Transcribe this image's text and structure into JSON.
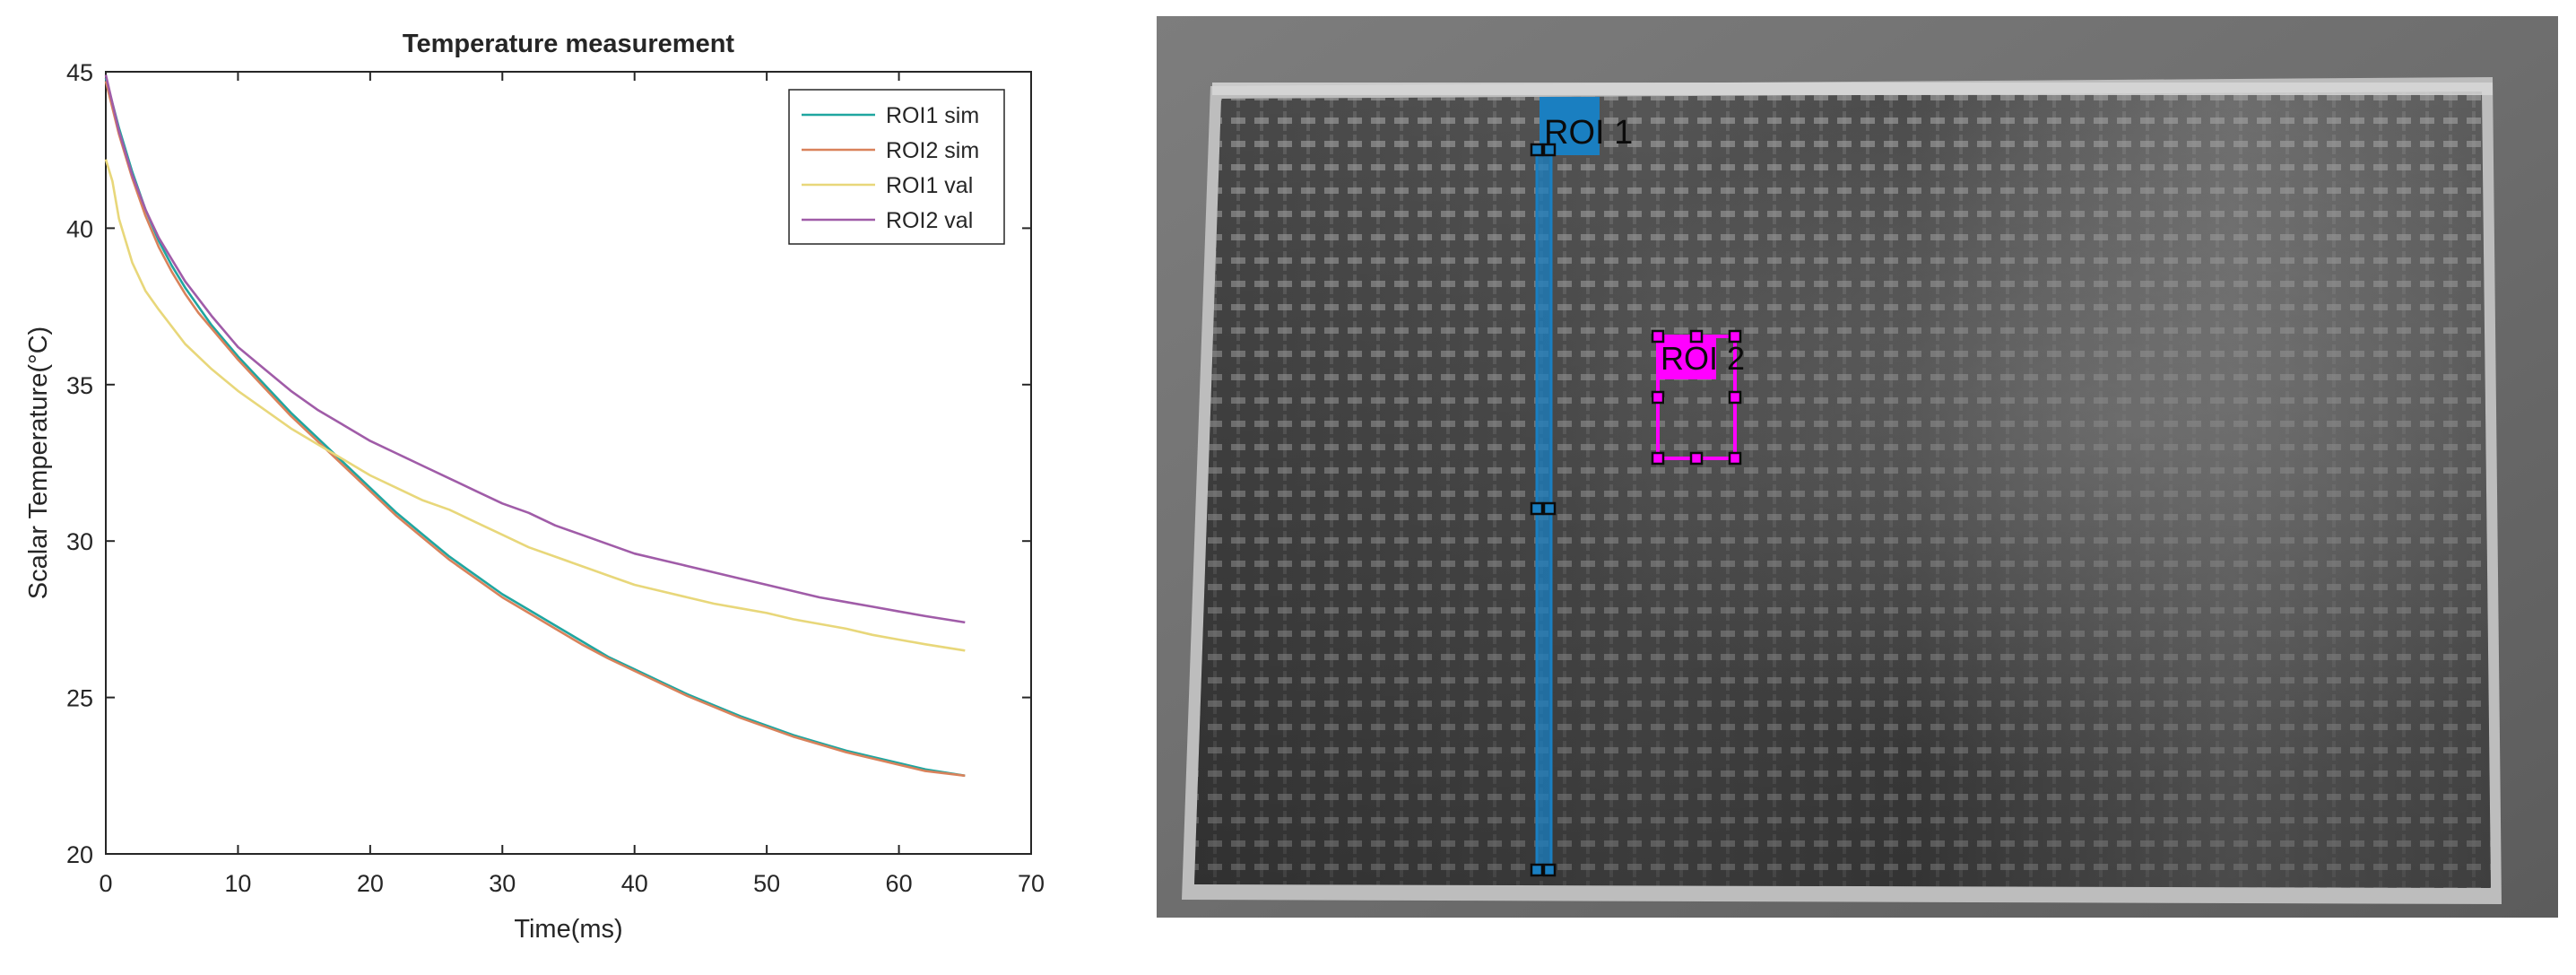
{
  "chart_data": {
    "type": "line",
    "title": "Temperature measurement",
    "xlabel": "Time(ms)",
    "ylabel": "Scalar Temperature(°C)",
    "xlim": [
      0,
      70
    ],
    "ylim": [
      20,
      45
    ],
    "x_ticks": [
      0,
      10,
      20,
      30,
      40,
      50,
      60,
      70
    ],
    "y_ticks": [
      20,
      25,
      30,
      35,
      40,
      45
    ],
    "x_tick_labels": [
      "0",
      "10",
      "20",
      "30",
      "40",
      "50",
      "60",
      "70"
    ],
    "y_tick_labels": [
      "20",
      "25",
      "30",
      "35",
      "40",
      "45"
    ],
    "grid": false,
    "legend_position": "top-right",
    "series": [
      {
        "name": "ROI1 sim",
        "color": "#1fa6a0",
        "x": [
          0,
          1,
          2,
          3,
          4,
          5,
          6,
          7,
          8,
          10,
          12,
          14,
          16,
          18,
          20,
          22,
          24,
          26,
          28,
          30,
          32,
          34,
          36,
          38,
          40,
          42,
          44,
          46,
          48,
          50,
          52,
          54,
          56,
          58,
          60,
          62,
          65
        ],
        "y": [
          44.8,
          43.2,
          41.8,
          40.6,
          39.6,
          38.8,
          38.1,
          37.5,
          36.9,
          35.9,
          35.0,
          34.1,
          33.3,
          32.5,
          31.7,
          30.9,
          30.2,
          29.5,
          28.9,
          28.3,
          27.8,
          27.3,
          26.8,
          26.3,
          25.9,
          25.5,
          25.1,
          24.75,
          24.4,
          24.1,
          23.8,
          23.55,
          23.3,
          23.1,
          22.9,
          22.7,
          22.5
        ]
      },
      {
        "name": "ROI2 sim",
        "color": "#d9825b",
        "x": [
          0,
          1,
          2,
          3,
          4,
          5,
          6,
          7,
          8,
          10,
          12,
          14,
          16,
          18,
          20,
          22,
          24,
          26,
          28,
          30,
          32,
          34,
          36,
          38,
          40,
          42,
          44,
          46,
          48,
          50,
          52,
          54,
          56,
          58,
          60,
          62,
          65
        ],
        "y": [
          44.7,
          43.0,
          41.6,
          40.4,
          39.4,
          38.6,
          37.9,
          37.3,
          36.8,
          35.8,
          34.9,
          34.0,
          33.2,
          32.4,
          31.6,
          30.8,
          30.1,
          29.4,
          28.8,
          28.2,
          27.7,
          27.2,
          26.7,
          26.25,
          25.85,
          25.45,
          25.05,
          24.7,
          24.35,
          24.05,
          23.75,
          23.5,
          23.25,
          23.05,
          22.85,
          22.65,
          22.5
        ]
      },
      {
        "name": "ROI1 val",
        "color": "#e8d77a",
        "x": [
          0,
          0.5,
          1,
          2,
          3,
          4,
          6,
          8,
          10,
          12,
          14,
          16,
          18,
          20,
          22,
          24,
          26,
          28,
          30,
          32,
          34,
          36,
          38,
          40,
          42,
          44,
          46,
          48,
          50,
          52,
          54,
          56,
          58,
          60,
          62,
          65
        ],
        "y": [
          42.2,
          41.5,
          40.3,
          38.9,
          38.0,
          37.4,
          36.3,
          35.5,
          34.8,
          34.2,
          33.6,
          33.1,
          32.6,
          32.1,
          31.7,
          31.3,
          31.0,
          30.6,
          30.2,
          29.8,
          29.5,
          29.2,
          28.9,
          28.6,
          28.4,
          28.2,
          28.0,
          27.85,
          27.7,
          27.5,
          27.35,
          27.2,
          27.0,
          26.85,
          26.7,
          26.5
        ]
      },
      {
        "name": "ROI2 val",
        "color": "#a05ca8",
        "x": [
          0,
          1,
          2,
          3,
          4,
          5,
          6,
          8,
          10,
          12,
          14,
          16,
          18,
          20,
          22,
          24,
          26,
          28,
          30,
          32,
          34,
          36,
          38,
          40,
          42,
          44,
          46,
          48,
          50,
          52,
          54,
          56,
          58,
          60,
          62,
          65
        ],
        "y": [
          44.9,
          43.1,
          41.7,
          40.6,
          39.7,
          39.0,
          38.3,
          37.2,
          36.2,
          35.5,
          34.8,
          34.2,
          33.7,
          33.2,
          32.8,
          32.4,
          32.0,
          31.6,
          31.2,
          30.9,
          30.5,
          30.2,
          29.9,
          29.6,
          29.4,
          29.2,
          29.0,
          28.8,
          28.6,
          28.4,
          28.2,
          28.05,
          27.9,
          27.75,
          27.6,
          27.4
        ]
      }
    ]
  },
  "thermal_image": {
    "roi1": {
      "label": "ROI 1",
      "color": "#1a7fc1"
    },
    "roi2": {
      "label": "ROI 2",
      "color": "#ff00ff"
    }
  }
}
